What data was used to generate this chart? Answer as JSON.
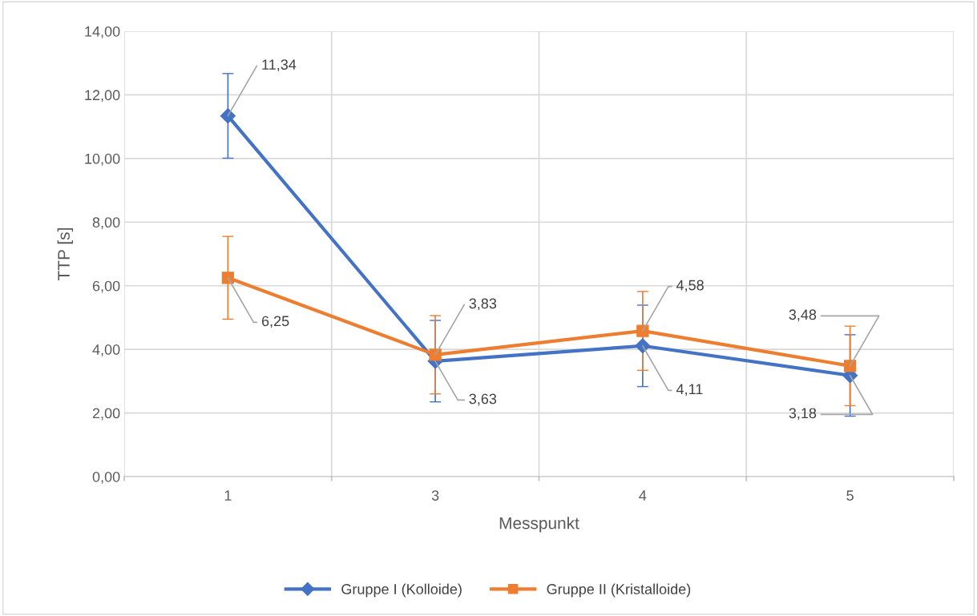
{
  "chart_data": {
    "type": "line",
    "xlabel": "Messpunkt",
    "ylabel": "TTP [s]",
    "categories": [
      "1",
      "3",
      "4",
      "5"
    ],
    "ylim": [
      0,
      14
    ],
    "yticks": [
      {
        "value": 0,
        "label": "0,00"
      },
      {
        "value": 2,
        "label": "2,00"
      },
      {
        "value": 4,
        "label": "4,00"
      },
      {
        "value": 6,
        "label": "6,00"
      },
      {
        "value": 8,
        "label": "8,00"
      },
      {
        "value": 10,
        "label": "10,00"
      },
      {
        "value": 12,
        "label": "12,00"
      },
      {
        "value": 14,
        "label": "14,00"
      }
    ],
    "grid": true,
    "legend": "bottom",
    "line_style": "solid",
    "series": [
      {
        "name": "Gruppe I (Kolloide)",
        "color": "#4472c4",
        "marker": "diamond",
        "values": [
          11.34,
          3.63,
          4.11,
          3.18
        ],
        "errors": [
          1.33,
          1.28,
          1.28,
          1.28
        ],
        "value_labels": [
          "11,34",
          "3,63",
          "4,11",
          "3,18"
        ]
      },
      {
        "name": "Gruppe II (Kristalloide)",
        "color": "#ed7d31",
        "marker": "square",
        "values": [
          6.25,
          3.83,
          4.58,
          3.48
        ],
        "errors": [
          1.3,
          1.23,
          1.24,
          1.25
        ],
        "value_labels": [
          "6,25",
          "3,83",
          "4,58",
          "3,48"
        ]
      }
    ]
  }
}
